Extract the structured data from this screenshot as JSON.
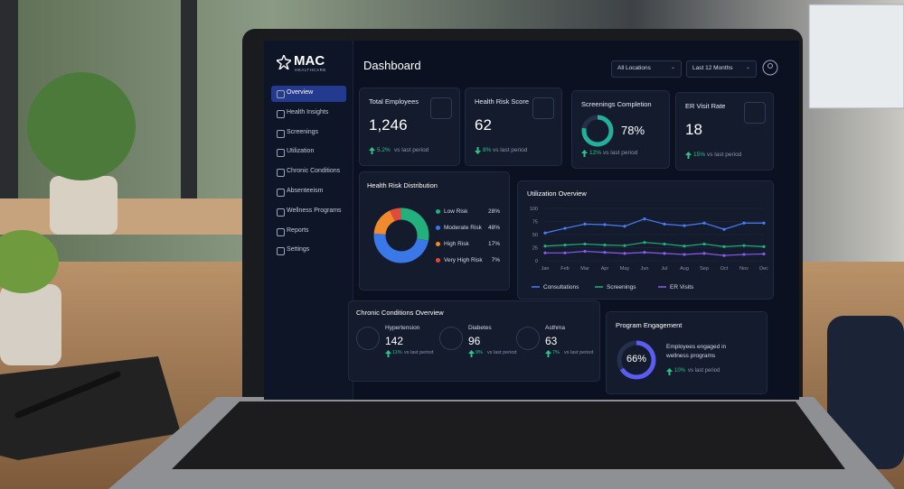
{
  "brand": {
    "name": "MAC",
    "sub": "HEALTHCARE"
  },
  "nav": [
    "Overview",
    "Health Insights",
    "Screenings",
    "Utilization",
    "Chronic Conditions",
    "Absenteeism",
    "Wellness Programs",
    "Reports",
    "Settings"
  ],
  "header": {
    "title": "Dashboard",
    "filters": [
      "All Locations",
      "Last 12 Months"
    ]
  },
  "kpis": [
    {
      "label": "Total Employees",
      "value": "1,246",
      "change": "5.2%",
      "note": "vs last period"
    },
    {
      "label": "Health Risk Score",
      "value": "62",
      "change": "8%",
      "note": "vs last period"
    },
    {
      "label": "Screenings Completion",
      "value": 78,
      "value_label": "78%",
      "change": "12%",
      "note": "vs last period"
    },
    {
      "label": "ER Visit Rate",
      "value": "18",
      "change": "15%",
      "note": "vs last period"
    }
  ],
  "health_risk_distribution": {
    "type": "pie",
    "title": "Health Risk Distribution",
    "categories": [
      "Low Risk",
      "Moderate Risk",
      "High Risk",
      "Very High Risk"
    ],
    "values": [
      28,
      48,
      17,
      7
    ],
    "value_labels": [
      "28%",
      "48%",
      "17%",
      "7%"
    ],
    "colors": [
      "#22b07d",
      "#3b78e7",
      "#f08a2c",
      "#e04b3c"
    ]
  },
  "utilization_overview": {
    "type": "line",
    "title": "Utilization Overview",
    "categories": [
      "Jan",
      "Feb",
      "Mar",
      "Apr",
      "May",
      "Jun",
      "Jul",
      "Aug",
      "Sep",
      "Oct",
      "Nov",
      "Dec"
    ],
    "ylim": [
      0,
      100
    ],
    "yticks": [
      0,
      25,
      50,
      75,
      100
    ],
    "grid": true,
    "series": [
      {
        "name": "Consultations",
        "color": "#4a7df5",
        "values": [
          53,
          62,
          70,
          69,
          66,
          80,
          70,
          67,
          72,
          60,
          72,
          72
        ]
      },
      {
        "name": "Screenings",
        "color": "#22b07d",
        "values": [
          28,
          30,
          32,
          30,
          29,
          35,
          32,
          28,
          32,
          27,
          29,
          27
        ]
      },
      {
        "name": "ER Visits",
        "color": "#8a5cf0",
        "values": [
          15,
          15,
          18,
          16,
          14,
          16,
          14,
          12,
          14,
          10,
          12,
          13
        ]
      }
    ]
  },
  "chronic_conditions": {
    "title": "Chronic Conditions Overview",
    "items": [
      {
        "name": "Hypertension",
        "value": "142",
        "change": "11%",
        "note": "vs last period"
      },
      {
        "name": "Diabetes",
        "value": "96",
        "change": "9%",
        "note": "vs last period"
      },
      {
        "name": "Asthma",
        "value": "63",
        "change": "7%",
        "note": "vs last period"
      }
    ]
  },
  "program_engagement": {
    "title": "Program Engagement",
    "value": 66,
    "value_label": "66%",
    "text": "Employees engaged in wellness programs",
    "change": "10%",
    "note": "vs last period"
  }
}
